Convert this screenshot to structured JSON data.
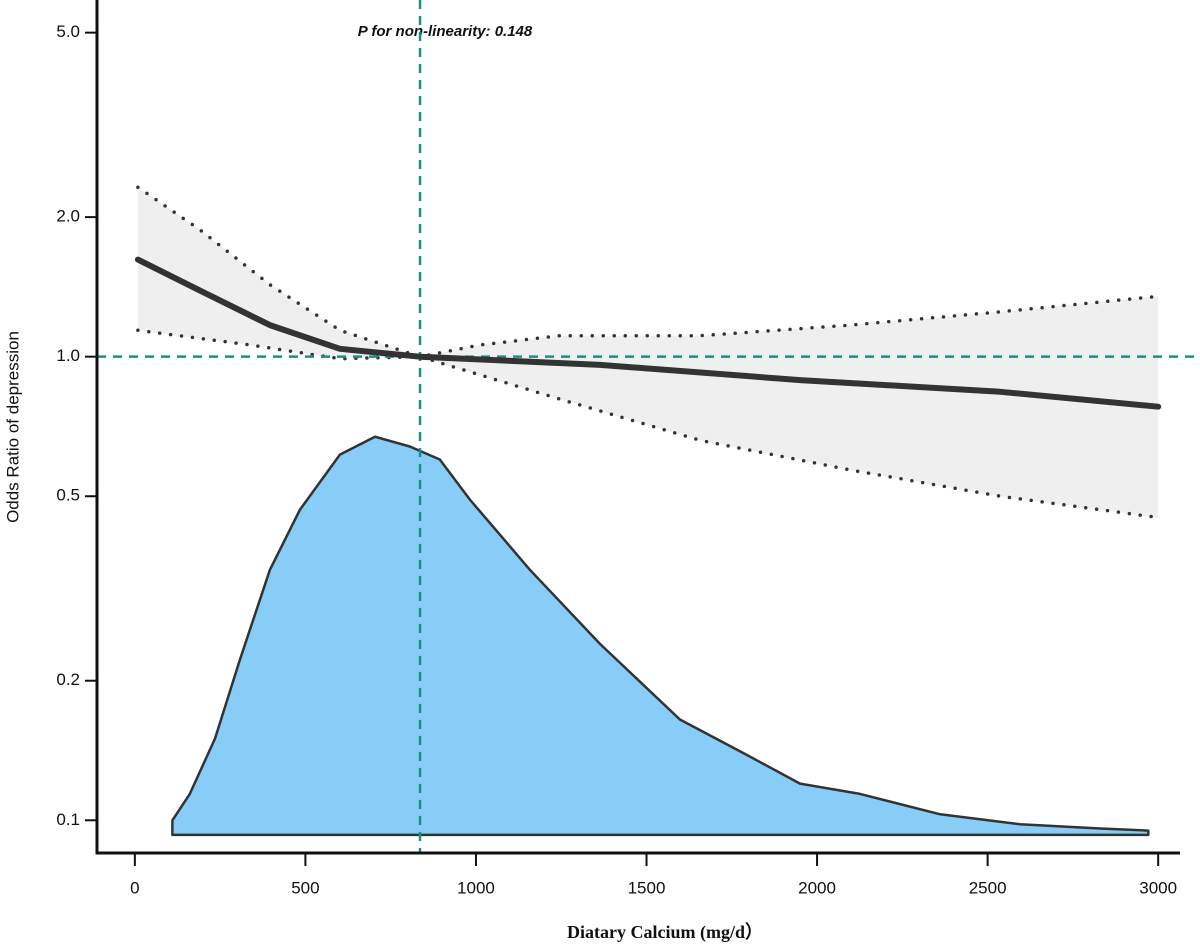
{
  "chart_data": {
    "type": "line",
    "ylabel": "Odds Ratio of depression",
    "xlabel": "Diatary Calcium (mg/d）",
    "annotation": "P for non-linearity: 0.148",
    "ylog": true,
    "xlim": [
      -111,
      3064
    ],
    "ylim": [
      0.085,
      5.88
    ],
    "xticks": [
      0,
      500,
      1000,
      1500,
      2000,
      2500,
      3000
    ],
    "yticks": [
      {
        "value": 5,
        "label": "5.0"
      },
      {
        "value": 2,
        "label": "2.0"
      },
      {
        "value": 1,
        "label": "1.0"
      },
      0.5,
      0.2,
      0.1
    ],
    "reference_lines": {
      "x": 836,
      "y": 1,
      "color": "#1a8f8a"
    },
    "band_color": "#efefef",
    "curve": {
      "color": "#333333",
      "x": [
        9,
        190,
        396,
        601,
        836,
        1364,
        1950,
        2537,
        3000
      ],
      "values": [
        1.62,
        1.39,
        1.17,
        1.04,
        1.0,
        0.96,
        0.89,
        0.84,
        0.78
      ]
    },
    "upper": {
      "color": "#333333",
      "x": [
        9,
        190,
        396,
        601,
        836,
        1012,
        1246,
        1657,
        2097,
        2537,
        3000
      ],
      "values": [
        2.32,
        1.88,
        1.43,
        1.14,
        1.0,
        1.06,
        1.11,
        1.11,
        1.17,
        1.25,
        1.35
      ]
    },
    "lower": {
      "color": "#333333",
      "x": [
        9,
        337,
        601,
        836,
        1246,
        1657,
        2097,
        2537,
        3000
      ],
      "values": [
        1.14,
        1.06,
        0.99,
        1.0,
        0.81,
        0.66,
        0.57,
        0.5,
        0.45
      ]
    },
    "density": {
      "color": "#87cdf7",
      "x": [
        110,
        110,
        161,
        235,
        308,
        396,
        484,
        601,
        704,
        806,
        894,
        982,
        1158,
        1364,
        1598,
        1789,
        1950,
        2126,
        2361,
        2595,
        2830,
        2971,
        2971
      ],
      "values": [
        0.093,
        0.1,
        0.114,
        0.15,
        0.222,
        0.347,
        0.468,
        0.615,
        0.672,
        0.64,
        0.6,
        0.492,
        0.347,
        0.24,
        0.165,
        0.139,
        0.12,
        0.114,
        0.103,
        0.098,
        0.096,
        0.095,
        0.093
      ]
    }
  }
}
